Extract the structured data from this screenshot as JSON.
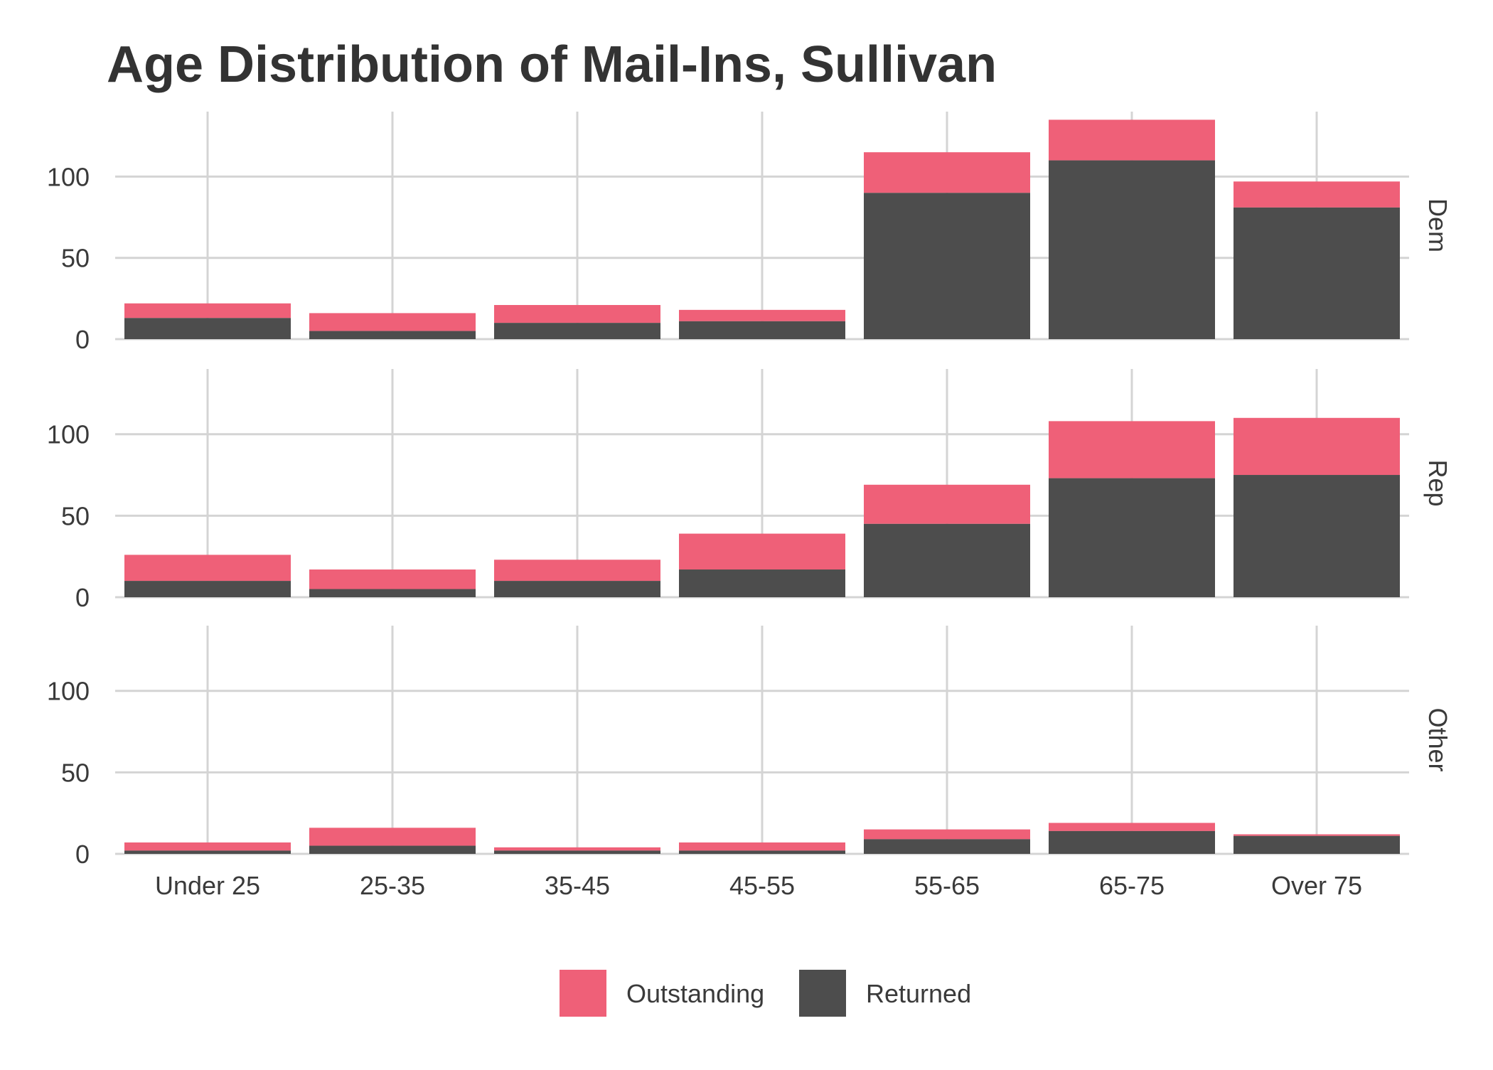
{
  "chart_data": {
    "type": "bar",
    "stacked": true,
    "title": "Age Distribution of Mail-Ins, Sullivan",
    "xlabel": "",
    "ylabel": "",
    "categories": [
      "Under 25",
      "25-35",
      "35-45",
      "45-55",
      "55-65",
      "65-75",
      "Over 75"
    ],
    "ylim": [
      0,
      140
    ],
    "yticks": [
      0,
      50,
      100
    ],
    "grid": true,
    "legend_position": "bottom",
    "colors": {
      "Outstanding": "#ef6078",
      "Returned": "#4d4d4d"
    },
    "legend": [
      "Outstanding",
      "Returned"
    ],
    "panels": [
      {
        "label": "Dem",
        "series": [
          {
            "name": "Returned",
            "values": [
              13,
              5,
              10,
              11,
              90,
              110,
              81
            ]
          },
          {
            "name": "Outstanding",
            "values": [
              9,
              11,
              11,
              7,
              25,
              25,
              16
            ]
          }
        ]
      },
      {
        "label": "Rep",
        "series": [
          {
            "name": "Returned",
            "values": [
              10,
              5,
              10,
              17,
              45,
              73,
              75
            ]
          },
          {
            "name": "Outstanding",
            "values": [
              16,
              12,
              13,
              22,
              24,
              35,
              35
            ]
          }
        ]
      },
      {
        "label": "Other",
        "series": [
          {
            "name": "Returned",
            "values": [
              2,
              5,
              2,
              2,
              9,
              14,
              11
            ]
          },
          {
            "name": "Outstanding",
            "values": [
              5,
              11,
              2,
              5,
              6,
              5,
              1
            ]
          }
        ]
      }
    ]
  }
}
